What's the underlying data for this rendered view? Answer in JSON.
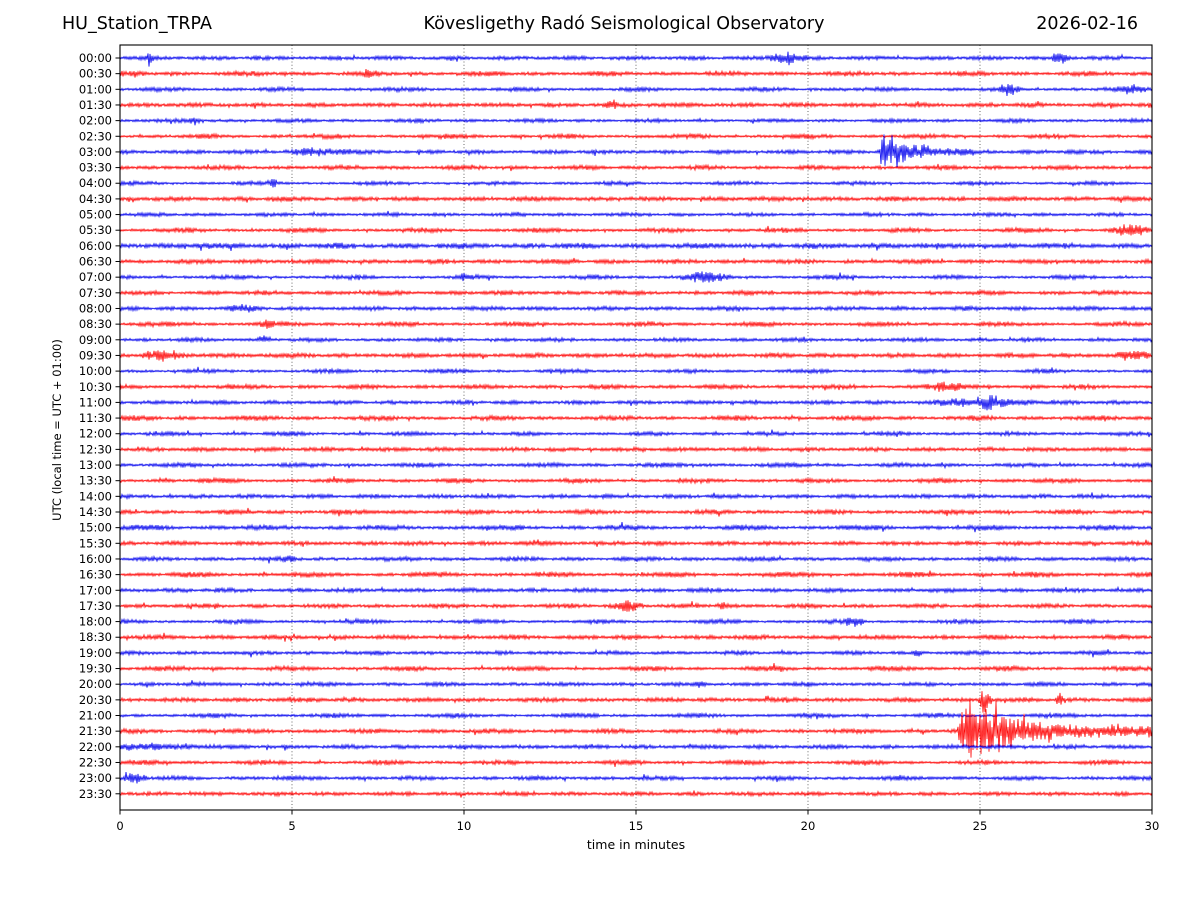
{
  "header": {
    "station": "HU_Station_TRPA",
    "title": "Kövesligethy Radó Seismological Observatory",
    "date": "2026-02-16"
  },
  "axes": {
    "xlabel": "time in minutes",
    "ylabel": "UTC (local time = UTC + 01:00)",
    "x_min": 0,
    "x_max": 30,
    "x_ticks": [
      0,
      5,
      10,
      15,
      20,
      25,
      30
    ],
    "grid_minutes": [
      5,
      10,
      15,
      20,
      25
    ]
  },
  "colors": {
    "trace_blue": "#0000ee",
    "trace_red": "#ff0000",
    "frame": "#000000",
    "grid": "#444444",
    "background": "#ffffff",
    "text": "#000000"
  },
  "chart_data": {
    "type": "line",
    "subtype": "helicorder",
    "minutes_per_line": 30,
    "rows": [
      {
        "label": "00:00",
        "color": "blue",
        "noise": 2.2,
        "events": [
          {
            "t": "spike",
            "m0": 0.72,
            "m1": 0.98,
            "a": 8
          },
          {
            "t": "burst",
            "m0": 18.7,
            "m1": 20.1,
            "a": 6
          },
          {
            "t": "burst",
            "m0": 27.0,
            "m1": 27.7,
            "a": 5
          }
        ]
      },
      {
        "label": "00:30",
        "color": "red",
        "noise": 2.5,
        "events": [
          {
            "t": "burst",
            "m0": 7.0,
            "m1": 7.5,
            "a": 3.5
          }
        ]
      },
      {
        "label": "01:00",
        "color": "blue",
        "noise": 2.2,
        "events": [
          {
            "t": "burst",
            "m0": 25.5,
            "m1": 26.2,
            "a": 5
          },
          {
            "t": "burst",
            "m0": 28.8,
            "m1": 30,
            "a": 3
          }
        ]
      },
      {
        "label": "01:30",
        "color": "red",
        "noise": 2.4,
        "events": [
          {
            "t": "burst",
            "m0": 14.0,
            "m1": 14.5,
            "a": 4
          }
        ]
      },
      {
        "label": "02:00",
        "color": "blue",
        "noise": 2.0,
        "events": [
          {
            "t": "burst",
            "m0": 2.0,
            "m1": 2.35,
            "a": 3.5
          }
        ]
      },
      {
        "label": "02:30",
        "color": "red",
        "noise": 2.3,
        "events": []
      },
      {
        "label": "03:00",
        "color": "blue",
        "noise": 2.2,
        "events": [
          {
            "t": "burst",
            "m0": 4.6,
            "m1": 7.0,
            "a": 3
          },
          {
            "t": "quake",
            "m0": 22.05,
            "m1": 24.8,
            "a": 13,
            "coda": 2.2,
            "pk": 0.35,
            "tau": 0.9
          }
        ]
      },
      {
        "label": "03:30",
        "color": "red",
        "noise": 2.3,
        "events": []
      },
      {
        "label": "04:00",
        "color": "blue",
        "noise": 2.0,
        "events": [
          {
            "t": "spike",
            "m0": 4.33,
            "m1": 4.57,
            "a": 6
          }
        ]
      },
      {
        "label": "04:30",
        "color": "red",
        "noise": 2.5,
        "events": []
      },
      {
        "label": "05:00",
        "color": "blue",
        "noise": 2.0,
        "events": []
      },
      {
        "label": "05:30",
        "color": "red",
        "noise": 2.4,
        "events": [
          {
            "t": "burst",
            "m0": 28.6,
            "m1": 30,
            "a": 5
          }
        ]
      },
      {
        "label": "06:00",
        "color": "blue",
        "noise": 3.0,
        "events": []
      },
      {
        "label": "06:30",
        "color": "red",
        "noise": 2.4,
        "events": []
      },
      {
        "label": "07:00",
        "color": "blue",
        "noise": 2.2,
        "events": [
          {
            "t": "spike",
            "m0": 9.88,
            "m1": 10.12,
            "a": 5
          },
          {
            "t": "burst",
            "m0": 16.1,
            "m1": 17.9,
            "a": 5
          }
        ]
      },
      {
        "label": "07:30",
        "color": "red",
        "noise": 2.3,
        "events": []
      },
      {
        "label": "08:00",
        "color": "blue",
        "noise": 2.3,
        "events": [
          {
            "t": "burst",
            "m0": 3.1,
            "m1": 4.0,
            "a": 3
          }
        ]
      },
      {
        "label": "08:30",
        "color": "red",
        "noise": 2.4,
        "events": [
          {
            "t": "burst",
            "m0": 4.05,
            "m1": 4.55,
            "a": 4
          }
        ]
      },
      {
        "label": "09:00",
        "color": "blue",
        "noise": 2.1,
        "events": [
          {
            "t": "burst",
            "m0": 3.95,
            "m1": 4.45,
            "a": 3.5
          }
        ]
      },
      {
        "label": "09:30",
        "color": "red",
        "noise": 2.5,
        "events": [
          {
            "t": "burst",
            "m0": 0.5,
            "m1": 1.9,
            "a": 4.5
          },
          {
            "t": "burst",
            "m0": 28.8,
            "m1": 30,
            "a": 4
          }
        ]
      },
      {
        "label": "10:00",
        "color": "blue",
        "noise": 2.1,
        "events": []
      },
      {
        "label": "10:30",
        "color": "red",
        "noise": 2.3,
        "events": [
          {
            "t": "burst",
            "m0": 23.2,
            "m1": 24.6,
            "a": 4
          }
        ]
      },
      {
        "label": "11:00",
        "color": "blue",
        "noise": 2.2,
        "events": [
          {
            "t": "burst",
            "m0": 23.4,
            "m1": 26.9,
            "a": 4
          },
          {
            "t": "burst",
            "m0": 24.9,
            "m1": 25.6,
            "a": 6
          }
        ]
      },
      {
        "label": "11:30",
        "color": "red",
        "noise": 2.5,
        "events": []
      },
      {
        "label": "12:00",
        "color": "blue",
        "noise": 2.1,
        "events": []
      },
      {
        "label": "12:30",
        "color": "red",
        "noise": 2.3,
        "events": []
      },
      {
        "label": "13:00",
        "color": "blue",
        "noise": 2.3,
        "events": []
      },
      {
        "label": "13:30",
        "color": "red",
        "noise": 2.3,
        "events": []
      },
      {
        "label": "14:00",
        "color": "blue",
        "noise": 2.3,
        "events": []
      },
      {
        "label": "14:30",
        "color": "red",
        "noise": 2.4,
        "events": []
      },
      {
        "label": "15:00",
        "color": "blue",
        "noise": 2.7,
        "events": []
      },
      {
        "label": "15:30",
        "color": "red",
        "noise": 2.3,
        "events": []
      },
      {
        "label": "16:00",
        "color": "blue",
        "noise": 2.3,
        "events": [
          {
            "t": "burst",
            "m0": 4.7,
            "m1": 5.1,
            "a": 3
          }
        ]
      },
      {
        "label": "16:30",
        "color": "red",
        "noise": 2.6,
        "events": []
      },
      {
        "label": "17:00",
        "color": "blue",
        "noise": 2.3,
        "events": []
      },
      {
        "label": "17:30",
        "color": "red",
        "noise": 2.3,
        "events": [
          {
            "t": "burst",
            "m0": 14.2,
            "m1": 15.3,
            "a": 5.5
          },
          {
            "t": "burst",
            "m0": 17.3,
            "m1": 17.7,
            "a": 3.5
          }
        ]
      },
      {
        "label": "18:00",
        "color": "blue",
        "noise": 2.2,
        "events": [
          {
            "t": "burst",
            "m0": 21.0,
            "m1": 21.7,
            "a": 4.5
          }
        ]
      },
      {
        "label": "18:30",
        "color": "red",
        "noise": 2.4,
        "events": []
      },
      {
        "label": "19:00",
        "color": "blue",
        "noise": 2.1,
        "events": [
          {
            "t": "burst",
            "m0": 23.0,
            "m1": 23.35,
            "a": 3.5
          }
        ]
      },
      {
        "label": "19:30",
        "color": "red",
        "noise": 2.5,
        "events": []
      },
      {
        "label": "20:00",
        "color": "blue",
        "noise": 2.1,
        "events": [
          {
            "t": "burst",
            "m0": 16.65,
            "m1": 17.05,
            "a": 3
          }
        ]
      },
      {
        "label": "20:30",
        "color": "red",
        "noise": 2.4,
        "events": [
          {
            "t": "spike",
            "m0": 24.95,
            "m1": 25.35,
            "a": 20
          },
          {
            "t": "spike",
            "m0": 27.15,
            "m1": 27.5,
            "a": 8
          }
        ]
      },
      {
        "label": "21:00",
        "color": "blue",
        "noise": 2.3,
        "events": []
      },
      {
        "label": "21:30",
        "color": "red",
        "noise": 2.4,
        "events": [
          {
            "t": "quake",
            "m0": 24.35,
            "m1": 30,
            "a": 24,
            "coda": 4.5,
            "pk": 1.0,
            "tau": 1.6
          }
        ]
      },
      {
        "label": "22:00",
        "color": "blue",
        "noise": 2.3,
        "events": [
          {
            "t": "decay",
            "m0": 0,
            "m1": 3.5,
            "a": 3.5,
            "tau": 1.4
          }
        ]
      },
      {
        "label": "22:30",
        "color": "red",
        "noise": 2.3,
        "events": []
      },
      {
        "label": "23:00",
        "color": "blue",
        "noise": 2.2,
        "events": [
          {
            "t": "burst",
            "m0": 0.05,
            "m1": 0.85,
            "a": 5
          }
        ]
      },
      {
        "label": "23:30",
        "color": "red",
        "noise": 2.2,
        "events": []
      }
    ]
  }
}
